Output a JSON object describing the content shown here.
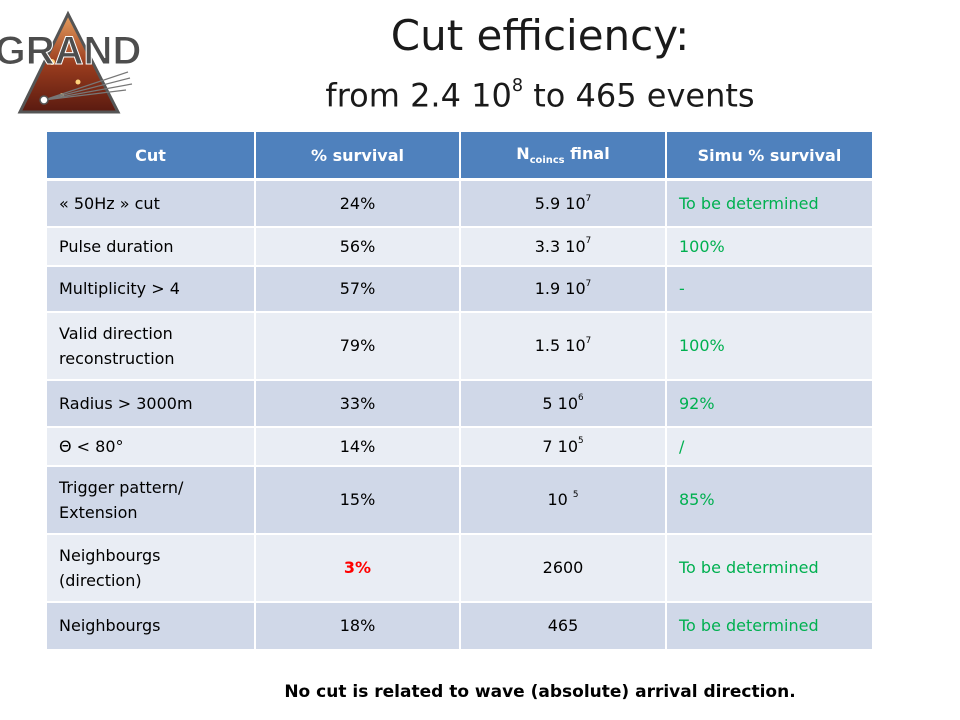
{
  "logo": {
    "text": "GRAND"
  },
  "header": {
    "title": "Cut efficiency:",
    "subtitle_prefix": "from 2.4 10",
    "subtitle_exp": "8",
    "subtitle_suffix": " to 465 events"
  },
  "table": {
    "headers": {
      "cut": "Cut",
      "survival": "% survival",
      "n_main": "N",
      "n_sub": "coincs",
      "n_rest": " final",
      "simu": "Simu % survival"
    },
    "rows": [
      {
        "cut": "« 50Hz » cut",
        "survival": "24%",
        "n_base": "5.9 10",
        "n_exp": "7",
        "simu": "To be determined"
      },
      {
        "cut": "Pulse duration",
        "survival": "56%",
        "n_base": "3.3 10",
        "n_exp": "7",
        "simu": "100%"
      },
      {
        "cut": "Multiplicity > 4",
        "survival": "57%",
        "n_base": "1.9 10",
        "n_exp": "7",
        "simu": "-"
      },
      {
        "cut": "Valid direction reconstruction",
        "survival": "79%",
        "n_base": "1.5 10",
        "n_exp": "7",
        "simu": "100%"
      },
      {
        "cut": "Radius > 3000m",
        "survival": "33%",
        "n_base": "5 10",
        "n_exp": "6",
        "simu": "92%"
      },
      {
        "cut": "Θ < 80°",
        "survival": "14%",
        "n_base": "7 10",
        "n_exp": "5",
        "simu": "/"
      },
      {
        "cut": "Trigger pattern/ Extension",
        "survival": "15%",
        "n_base": "10 ",
        "n_exp": "5",
        "simu": "85%"
      },
      {
        "cut": "Neighbourgs (direction)",
        "survival": "3%",
        "n_base": "2600",
        "n_exp": "",
        "simu": "To be determined"
      },
      {
        "cut": "Neighbourgs",
        "survival": "18%",
        "n_base": "465",
        "n_exp": "",
        "simu": "To be determined"
      }
    ]
  },
  "footer": {
    "note": "No cut is related to wave (absolute) arrival direction."
  },
  "colors": {
    "header_bg": "#4f81bd",
    "row_odd": "#d0d8e8",
    "row_even": "#e9edf4",
    "simu_text": "#00b050",
    "highlight_text": "#ff0000"
  }
}
